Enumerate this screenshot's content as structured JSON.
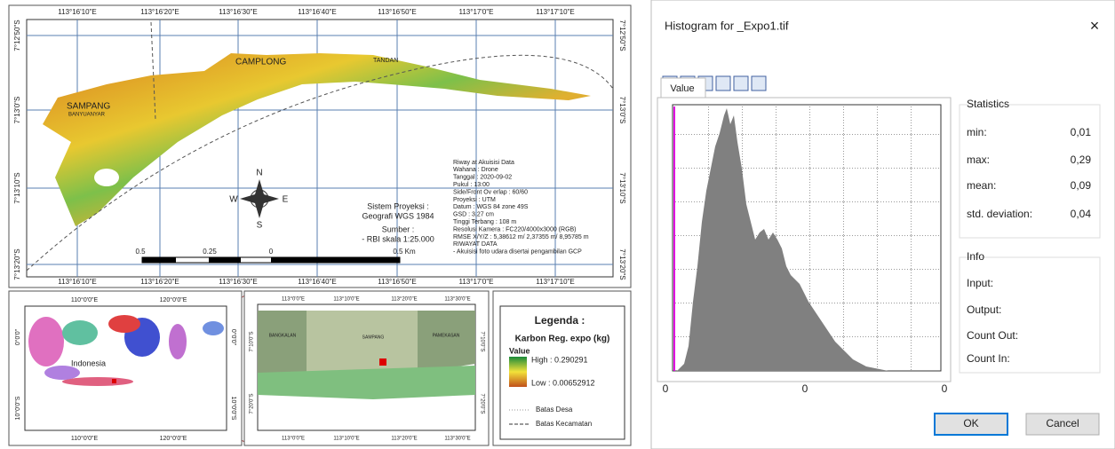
{
  "map": {
    "lon_labels": [
      "113°16'10\"E",
      "113°16'20\"E",
      "113°16'30\"E",
      "113°16'40\"E",
      "113°16'50\"E",
      "113°17'0\"E",
      "113°17'10\"E"
    ],
    "lat_labels": [
      "7°12'50\"S",
      "7°13'0\"S",
      "7°13'10\"S",
      "7°13'20\"S"
    ],
    "places": {
      "camplong": "CAMPLONG",
      "tandan": "TANDAN",
      "sampang": "SAMPANG",
      "banyuanyar": "BANYUANYAR"
    },
    "compass": {
      "n": "N",
      "s": "S",
      "e": "E",
      "w": "W"
    },
    "projection": [
      "Sistem Proyeksi :",
      "Geografi WGS 1984",
      "Sumber :",
      "- RBI skala 1:25.000"
    ],
    "history": [
      "Riway at Akuisisi Data",
      "Wahana : Drone",
      "Tanggal : 2020-09-02",
      "Pukul : 13:00",
      "Side/Front Ov erlap : 60/60",
      "Proyeksi : UTM",
      "Datum : WGS 84  zone 49S",
      "GSD : 3,27 cm",
      "Tinggi Terbang : 108 m",
      "Resolusi Kamera : FC220/4000x3000 (RGB)",
      "RMSE X/Y/Z : 5,38612 m/ 2,37355 m/ 8,95785 m",
      "RIWAYAT DATA",
      "- Akuisisi foto udara  disertai pengambilan GCP"
    ],
    "scale_labels": [
      "0.5",
      "0.25",
      "0",
      "0.5 Km"
    ]
  },
  "inset_indonesia": {
    "lon_labels": [
      "110°0'0\"E",
      "120°0'0\"E"
    ],
    "lat_labels": [
      "0°0'0\"",
      "10°0'0\"S"
    ],
    "label": "Indonesia"
  },
  "inset_madura": {
    "lon_labels": [
      "113°0'0\"E",
      "113°10'0\"E",
      "113°20'0\"E",
      "113°30'0\"E"
    ],
    "lat_labels": [
      "7°10'0\"S",
      "7°20'0\"S"
    ],
    "regions": [
      "BANGKALAN",
      "SAMPANG",
      "PAMEKASAN"
    ]
  },
  "legend": {
    "title": "Legenda :",
    "subtitle": "Karbon Reg. expo (kg)",
    "value": "Value",
    "high": "High : 0.290291",
    "low": "Low : 0.00652912",
    "lines": [
      "Batas Desa",
      "Batas Kecamatan"
    ]
  },
  "dialog": {
    "title": "Histogram for _Expo1.tif",
    "close": "×",
    "tab": "Value",
    "axis_labels": [
      "0",
      "0",
      "0"
    ],
    "statistics": {
      "title": "Statistics",
      "rows": [
        [
          "min:",
          "0,01"
        ],
        [
          "max:",
          "0,29"
        ],
        [
          "mean:",
          "0,09"
        ],
        [
          "std. deviation:",
          "0,04"
        ]
      ]
    },
    "info": {
      "title": "Info",
      "rows": [
        "Input:",
        "Output:",
        "Count Out:",
        "Count In:"
      ]
    },
    "buttons": [
      "OK",
      "Cancel"
    ]
  }
}
